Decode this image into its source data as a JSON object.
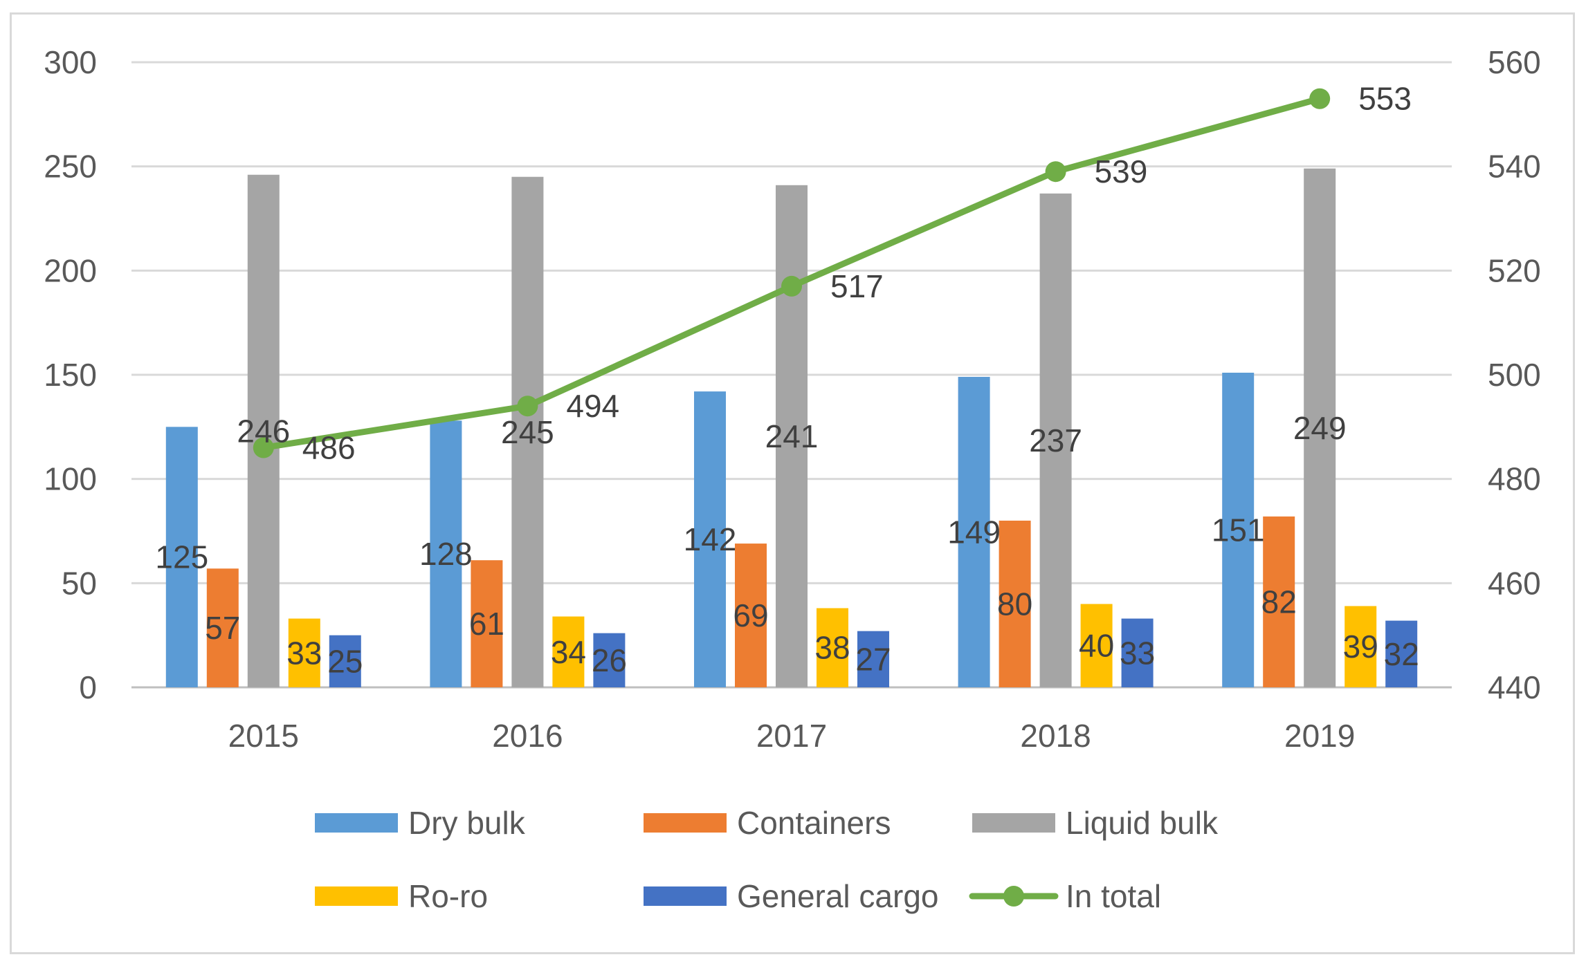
{
  "chart_data": {
    "type": "bar",
    "title": "",
    "xlabel": "",
    "ylabel": "",
    "categories": [
      "2015",
      "2016",
      "2017",
      "2018",
      "2019"
    ],
    "ylim": [
      0,
      300
    ],
    "yticks": [
      "0",
      "50",
      "100",
      "150",
      "200",
      "250",
      "300"
    ],
    "y2lim": [
      440,
      560
    ],
    "y2ticks": [
      "440",
      "460",
      "480",
      "500",
      "520",
      "540",
      "560"
    ],
    "grid": true,
    "legend_position": "bottom",
    "series": [
      {
        "name": "Dry bulk",
        "type": "bar",
        "axis": "left",
        "color": "#5B9BD5",
        "values": [
          125,
          128,
          142,
          149,
          151
        ]
      },
      {
        "name": "Containers",
        "type": "bar",
        "axis": "left",
        "color": "#ED7D31",
        "values": [
          57,
          61,
          69,
          80,
          82
        ]
      },
      {
        "name": "Liquid bulk",
        "type": "bar",
        "axis": "left",
        "color": "#A5A5A5",
        "values": [
          246,
          245,
          241,
          237,
          249
        ]
      },
      {
        "name": "Ro-ro",
        "type": "bar",
        "axis": "left",
        "color": "#FFC000",
        "values": [
          33,
          34,
          38,
          40,
          39
        ]
      },
      {
        "name": "General cargo",
        "type": "bar",
        "axis": "left",
        "color": "#4472C4",
        "values": [
          25,
          26,
          27,
          33,
          32
        ]
      },
      {
        "name": "In total",
        "type": "line",
        "axis": "right",
        "color": "#70AD47",
        "values": [
          486,
          494,
          517,
          539,
          553
        ]
      }
    ]
  }
}
